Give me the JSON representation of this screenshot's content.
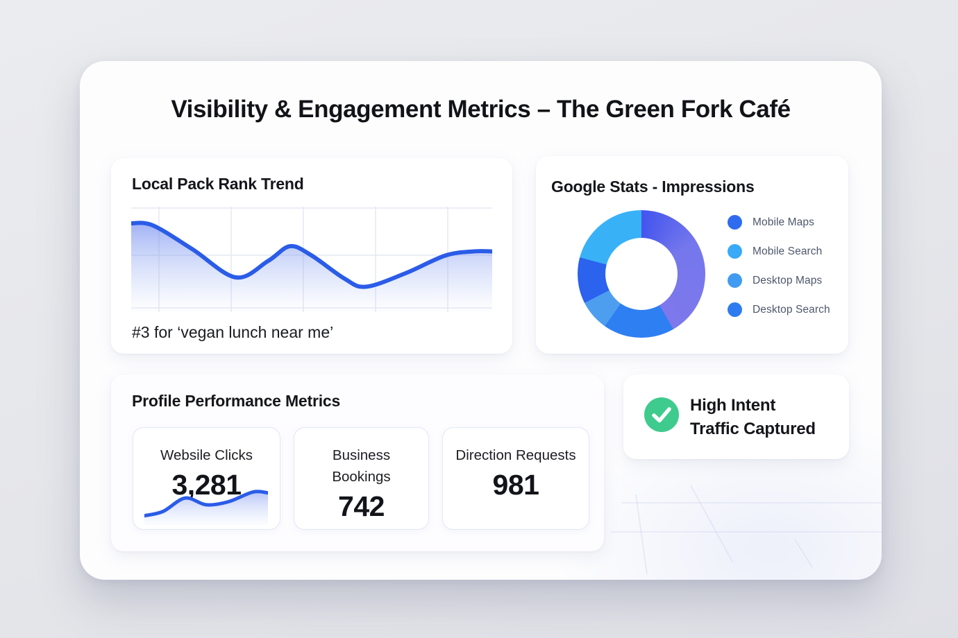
{
  "page": {
    "title": "Visibility & Engagement Metrics – The Green Fork Café"
  },
  "colors": {
    "accent_line_blue": "#2b5ce8",
    "success_green": "#3fcb8e",
    "grid": "#e6e9f3",
    "legend_text": "#4d576b"
  },
  "cards": {
    "rank_trend": {
      "title": "Local Pack Rank Trend",
      "caption": "#3 for ‘vegan lunch near me’"
    },
    "impressions": {
      "title": "Google Stats - Impressions",
      "legend": [
        {
          "label": "Mobile Maps",
          "color": "#2e6bef"
        },
        {
          "label": "Mobile Search",
          "color": "#38aaf7"
        },
        {
          "label": "Desktop Maps",
          "color": "#419bf0"
        },
        {
          "label": "Desktop Search",
          "color": "#2e7cf0"
        }
      ]
    },
    "profile_metrics": {
      "title": "Profile Performance Metrics",
      "stats": [
        {
          "label": "Websile Clicks",
          "value": "3,281",
          "has_sparkline": true
        },
        {
          "label": "Business Bookings",
          "value": "742",
          "has_sparkline": false
        },
        {
          "label": "Direction Requests",
          "value": "981",
          "has_sparkline": false
        }
      ]
    },
    "high_intent": {
      "line1": "High Intent",
      "line2": "Traffic Captured",
      "check_color": "#3fcb8e"
    }
  },
  "chart_data": [
    {
      "type": "area",
      "title": "Local Pack Rank Trend",
      "annotation": "#3 for ‘vegan lunch near me’",
      "axis_labels": "none visible (decorative trend line; 5 vertical and 3 horizontal faint gridlines)",
      "line_color": "#2b5ce8",
      "points_norm": [
        [
          0,
          0.16
        ],
        [
          0.06,
          0.18
        ],
        [
          0.17,
          0.41
        ],
        [
          0.29,
          0.68
        ],
        [
          0.38,
          0.52
        ],
        [
          0.44,
          0.38
        ],
        [
          0.5,
          0.47
        ],
        [
          0.59,
          0.69
        ],
        [
          0.65,
          0.77
        ],
        [
          0.76,
          0.64
        ],
        [
          0.87,
          0.47
        ],
        [
          0.95,
          0.43
        ],
        [
          1,
          0.43
        ]
      ]
    },
    {
      "type": "donut",
      "title": "Google Stats - Impressions",
      "legend_position": "right",
      "segments": [
        {
          "label": "(unlabeled gradient slice)",
          "approx_pct": 41.7,
          "color": "#4355ee to #7e78ec"
        },
        {
          "label": "Desktop Search",
          "approx_pct": 18.1,
          "color": "#2e7ff2"
        },
        {
          "label": "Desktop Maps",
          "approx_pct": 7.8,
          "color": "#4e9ef0"
        },
        {
          "label": "Mobile Maps",
          "approx_pct": 11.7,
          "color": "#2b62ee"
        },
        {
          "label": "Mobile Search",
          "approx_pct": 20.8,
          "color": "#39b1f7"
        }
      ],
      "arc_stops": [
        [
          "#4355ee",
          0
        ],
        [
          "#7577ec",
          60
        ],
        [
          "#7e78ec",
          150
        ],
        [
          "#2e7ff2",
          150
        ],
        [
          "#2e7ff2",
          215
        ],
        [
          "#4e9ef0",
          215
        ],
        [
          "#4e9ef0",
          243
        ],
        [
          "#2b62ee",
          243
        ],
        [
          "#2b62ee",
          285
        ],
        [
          "#39b1f7",
          285
        ],
        [
          "#39b1f7",
          360
        ]
      ]
    },
    {
      "type": "area",
      "title": "Websile Clicks sparkline",
      "line_color": "#2b5ce8",
      "points_norm": [
        [
          0,
          0.88
        ],
        [
          0.15,
          0.74
        ],
        [
          0.33,
          0.3
        ],
        [
          0.5,
          0.52
        ],
        [
          0.68,
          0.42
        ],
        [
          0.88,
          0.1
        ],
        [
          1,
          0.13
        ]
      ]
    }
  ]
}
